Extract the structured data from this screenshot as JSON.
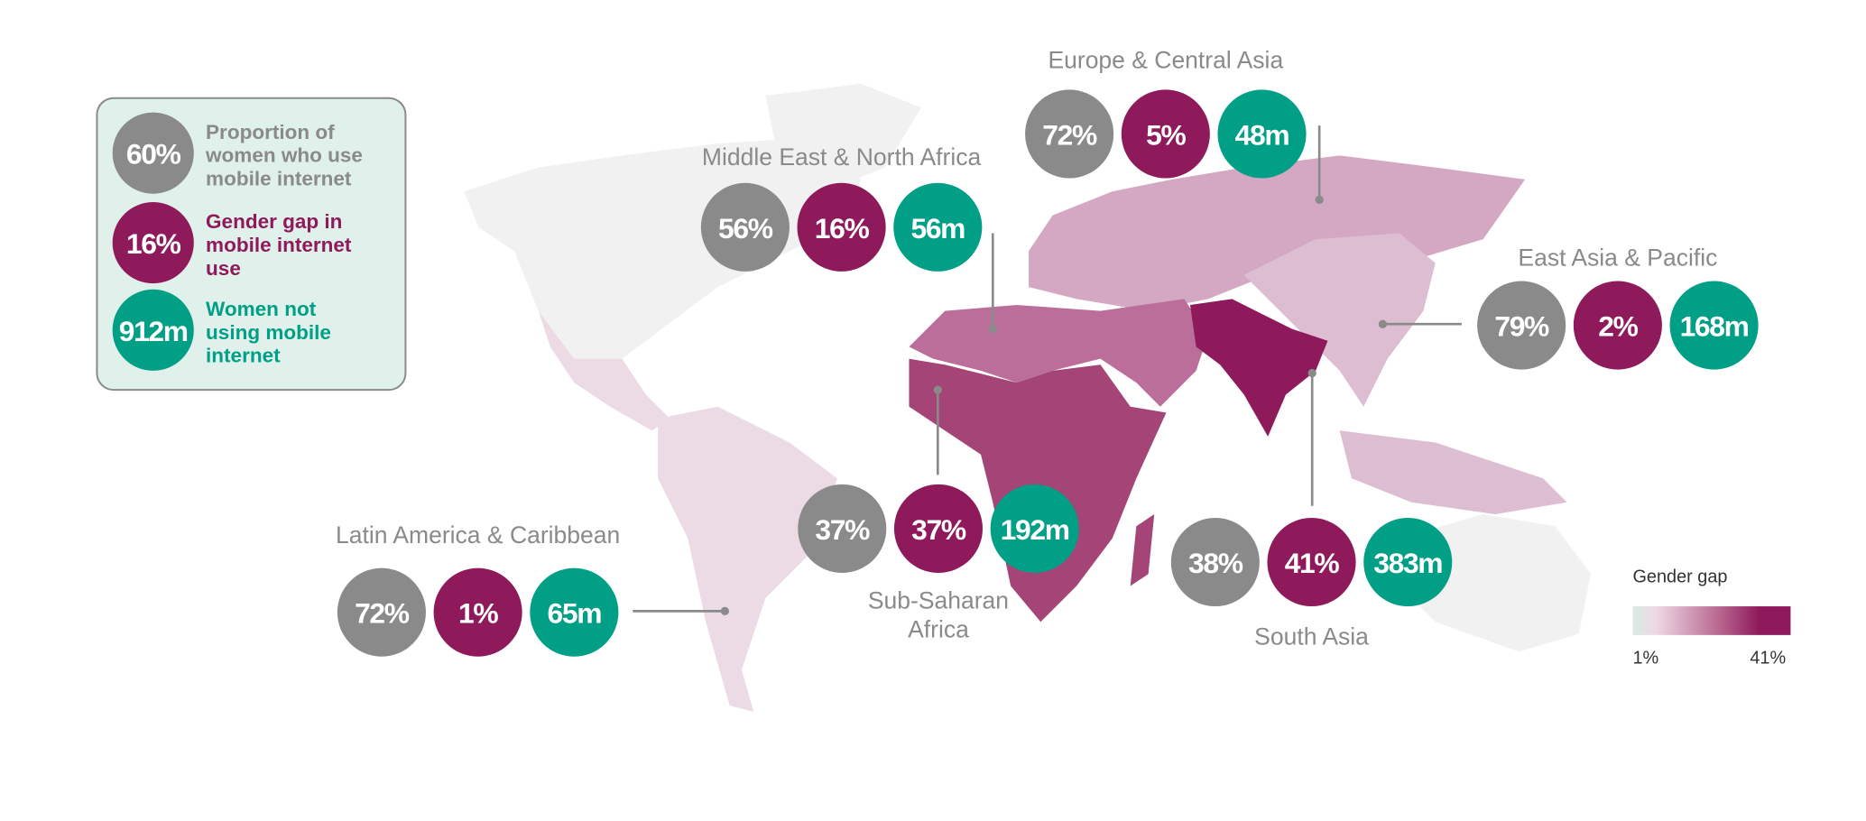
{
  "legend": {
    "items": [
      {
        "sample": "60%",
        "label_lines": [
          "Proportion of",
          "women who use",
          "mobile internet"
        ]
      },
      {
        "sample": "16%",
        "label_lines": [
          "Gender gap in",
          "mobile internet",
          "use"
        ]
      },
      {
        "sample": "912m",
        "label_lines": [
          "Women not",
          "using mobile",
          "internet"
        ]
      }
    ]
  },
  "regions": [
    {
      "name_lines": [
        "Europe & Central Asia"
      ],
      "proportion": "72%",
      "gender_gap": "5%",
      "women_not_using": "48m"
    },
    {
      "name_lines": [
        "Middle East & North Africa"
      ],
      "proportion": "56%",
      "gender_gap": "16%",
      "women_not_using": "56m"
    },
    {
      "name_lines": [
        "East Asia & Pacific"
      ],
      "proportion": "79%",
      "gender_gap": "2%",
      "women_not_using": "168m"
    },
    {
      "name_lines": [
        "Sub-Saharan",
        "Africa"
      ],
      "proportion": "37%",
      "gender_gap": "37%",
      "women_not_using": "192m"
    },
    {
      "name_lines": [
        "South Asia"
      ],
      "proportion": "38%",
      "gender_gap": "41%",
      "women_not_using": "383m"
    },
    {
      "name_lines": [
        "Latin America & Caribbean"
      ],
      "proportion": "72%",
      "gender_gap": "1%",
      "women_not_using": "65m"
    }
  ],
  "scale": {
    "title": "Gender gap",
    "min_label": "1%",
    "max_label": "41%"
  }
}
